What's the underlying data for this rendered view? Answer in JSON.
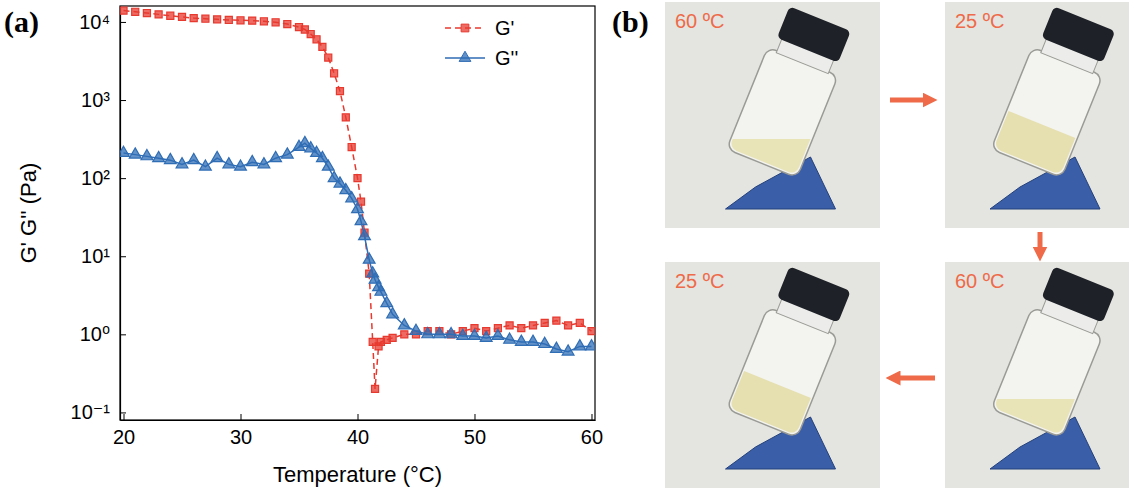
{
  "chart_data": {
    "type": "line",
    "label": "(a)",
    "x_label": "Temperature (°C)",
    "y_label": "G' G'' (Pa)",
    "log": "y",
    "grid": false,
    "legend": "upper right",
    "xlim": [
      19.7,
      60.3
    ],
    "xticks": [
      20,
      30,
      40,
      50,
      60
    ],
    "ylim": [
      0.08,
      16000
    ],
    "yticks": [
      {
        "value": 0.1,
        "label": "10⁻¹"
      },
      {
        "value": 1,
        "label": "10⁰"
      },
      {
        "value": 10,
        "label": "10¹"
      },
      {
        "value": 100,
        "label": "10²"
      },
      {
        "value": 1000,
        "label": "10³"
      },
      {
        "value": 10000,
        "label": "10⁴"
      }
    ],
    "x": [
      20,
      21,
      22,
      23,
      24,
      25,
      26,
      27,
      28,
      29,
      30,
      31,
      32,
      33,
      34,
      35,
      35.5,
      36,
      36.5,
      37,
      37.5,
      38,
      38.5,
      39,
      39.5,
      40,
      40.3,
      40.6,
      41,
      41.3,
      41.5,
      41.8,
      42,
      42.5,
      43,
      44,
      45,
      46,
      47,
      48,
      49,
      50,
      51,
      52,
      53,
      54,
      55,
      56,
      57,
      58,
      59,
      60
    ],
    "series": [
      {
        "name": "G'",
        "color": "#e8392f",
        "marker": "square",
        "line_style": "dashed",
        "values": [
          14000,
          13500,
          13000,
          12500,
          12000,
          11600,
          11200,
          11000,
          10800,
          10600,
          10500,
          10400,
          10200,
          9900,
          9400,
          8600,
          8000,
          7000,
          6000,
          4800,
          3500,
          2200,
          1300,
          600,
          250,
          100,
          50,
          20,
          6,
          0.8,
          0.2,
          0.7,
          0.8,
          0.85,
          0.9,
          1.0,
          1.0,
          1.1,
          1.1,
          1.0,
          1.1,
          1.2,
          1.1,
          1.2,
          1.3,
          1.2,
          1.3,
          1.4,
          1.5,
          1.3,
          1.4,
          1.1
        ]
      },
      {
        "name": "G''",
        "color": "#2f6db5",
        "marker": "triangle",
        "line_style": "solid",
        "values": [
          210,
          200,
          190,
          180,
          170,
          150,
          170,
          140,
          180,
          150,
          140,
          160,
          150,
          180,
          200,
          250,
          280,
          240,
          210,
          180,
          140,
          100,
          85,
          70,
          55,
          40,
          28,
          18,
          9,
          6,
          5,
          4,
          3.5,
          2.5,
          1.8,
          1.3,
          1.1,
          1.0,
          1.0,
          1.0,
          0.95,
          0.95,
          0.9,
          0.95,
          0.85,
          0.8,
          0.8,
          0.75,
          0.65,
          0.6,
          0.7,
          0.7
        ]
      }
    ]
  },
  "photos": {
    "label": "(b)",
    "frames": [
      {
        "label": "60 ºC"
      },
      {
        "label": "25 ºC"
      },
      {
        "label": "60 ºC"
      },
      {
        "label": "25 ºC"
      }
    ]
  }
}
